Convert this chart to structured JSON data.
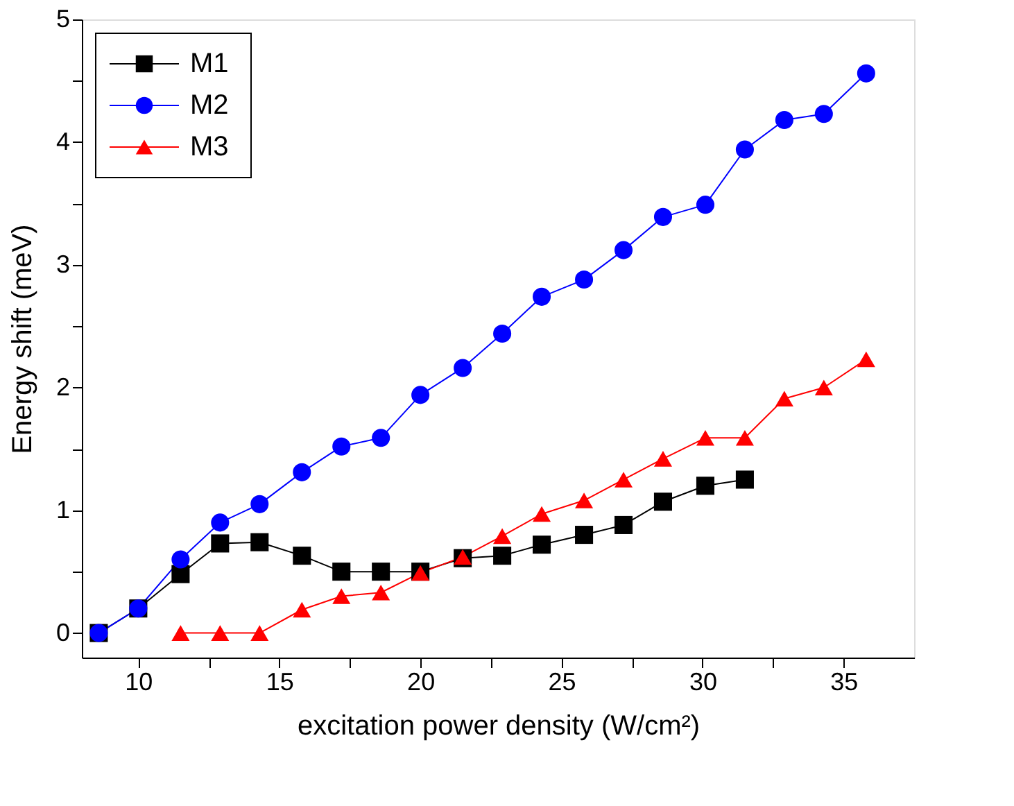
{
  "chart_data": {
    "type": "line",
    "xlabel": "excitation power density (W/cm²)",
    "ylabel": "Energy shift (meV)",
    "xlim": [
      8,
      37.5
    ],
    "ylim": [
      -0.2,
      5
    ],
    "xticks": [
      10,
      {
        "value": 12.5,
        "label": null
      },
      15,
      {
        "value": 17.5,
        "label": null
      },
      20,
      {
        "value": 22.5,
        "label": null
      },
      25,
      {
        "value": 27.5,
        "label": null
      },
      30,
      {
        "value": 32.5,
        "label": null
      },
      35
    ],
    "yticks": [
      0,
      {
        "value": 0.5,
        "label": null
      },
      1,
      {
        "value": 1.5,
        "label": null
      },
      2,
      {
        "value": 2.5,
        "label": null
      },
      3,
      {
        "value": 3.5,
        "label": null
      },
      4,
      {
        "value": 4.5,
        "label": null
      },
      5
    ],
    "grid": false,
    "legend": "top left",
    "line_style": "solid",
    "series": [
      {
        "name": "M1",
        "color": "#000000",
        "marker": "square",
        "x": [
          8.6,
          10.0,
          11.5,
          12.9,
          14.3,
          15.8,
          17.2,
          18.6,
          20.0,
          21.5,
          22.9,
          24.3,
          25.8,
          27.2,
          28.6,
          30.1,
          31.5
        ],
        "values": [
          0,
          0.2,
          0.48,
          0.73,
          0.74,
          0.63,
          0.5,
          0.5,
          0.5,
          0.61,
          0.63,
          0.72,
          0.8,
          0.88,
          1.07,
          1.2,
          1.25
        ]
      },
      {
        "name": "M2",
        "color": "#0000ff",
        "marker": "circle",
        "x": [
          8.6,
          10.0,
          11.5,
          12.9,
          14.3,
          15.8,
          17.2,
          18.6,
          20.0,
          21.5,
          22.9,
          24.3,
          25.8,
          27.2,
          28.6,
          30.1,
          31.5,
          32.9,
          34.3,
          35.8
        ],
        "values": [
          0,
          0.2,
          0.6,
          0.9,
          1.05,
          1.31,
          1.52,
          1.59,
          1.94,
          2.16,
          2.44,
          2.74,
          2.88,
          3.12,
          3.39,
          3.49,
          3.94,
          4.18,
          4.23,
          4.56
        ]
      },
      {
        "name": "M3",
        "color": "#ff0000",
        "marker": "triangle",
        "x": [
          11.5,
          12.9,
          14.3,
          15.8,
          17.2,
          18.6,
          20.0,
          21.5,
          22.9,
          24.3,
          25.8,
          27.2,
          28.6,
          30.1,
          31.5,
          32.9,
          34.3,
          35.8
        ],
        "values": [
          0,
          0,
          0,
          0.19,
          0.3,
          0.33,
          0.49,
          0.62,
          0.79,
          0.97,
          1.08,
          1.25,
          1.42,
          1.59,
          1.59,
          1.91,
          2.0,
          2.23
        ]
      }
    ]
  }
}
